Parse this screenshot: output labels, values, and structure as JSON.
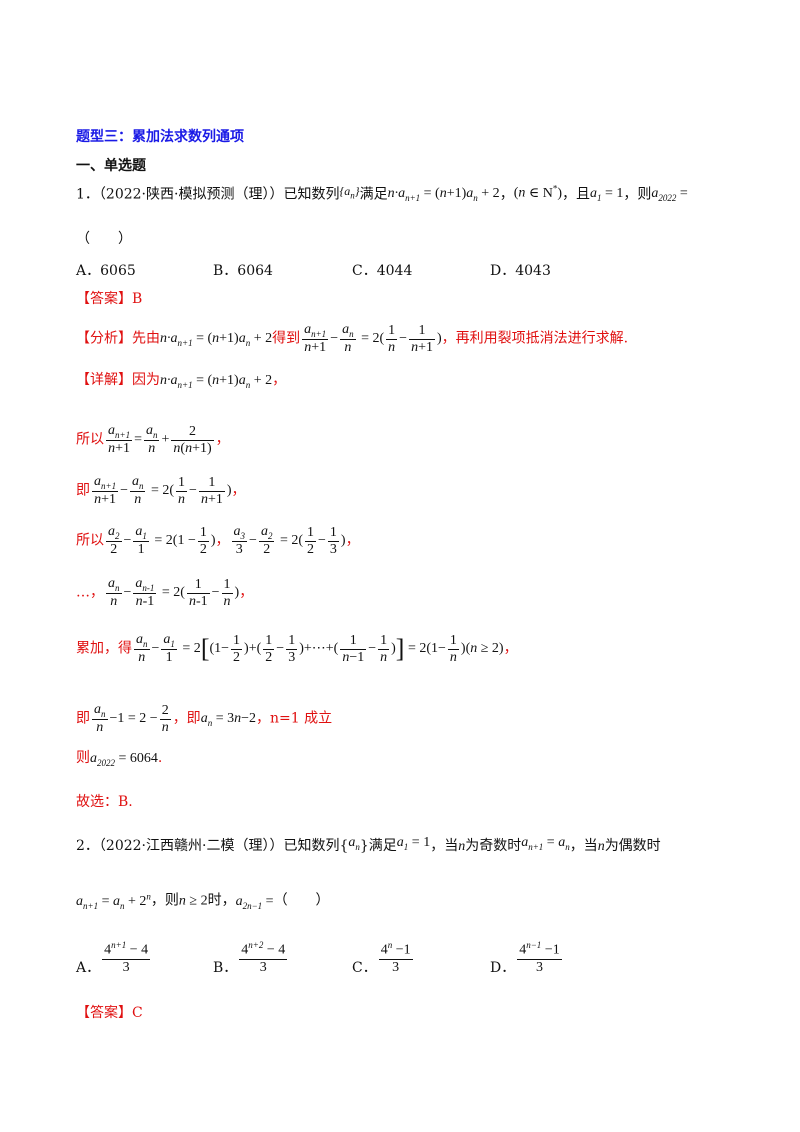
{
  "section_title": "题型三：累加法求数列通项",
  "subsection": "一、单选题",
  "q1": {
    "number": "1．",
    "source": "（2022·陕西·模拟预测（理））",
    "stem_a": "已知数列",
    "stem_b": "满足",
    "stem_c": "，且",
    "stem_d": "，则",
    "paren": "（　　）",
    "options": [
      {
        "label": "A．",
        "value": "6065"
      },
      {
        "label": "B．",
        "value": "6064"
      },
      {
        "label": "C．",
        "value": "4044"
      },
      {
        "label": "D．",
        "value": "4043"
      }
    ],
    "answer_tag": "【答案】",
    "answer": "B",
    "analysis_tag": "【分析】",
    "analysis_a": "先由",
    "analysis_b": "得到",
    "analysis_c": "，再利用裂项抵消法进行求解.",
    "detail_tag": "【详解】",
    "detail_a": "因为",
    "so": "所以",
    "ji": "即",
    "leijia": "累加，得",
    "ji2": "，即",
    "n1": "n=1 成立",
    "ze": "则",
    "choose": "故选：B."
  },
  "q2": {
    "number": "2．",
    "source": "（2022·江西赣州·二模（理））",
    "stem_a": "已知数列{",
    "stem_b": "}满足",
    "stem_c": "，当",
    "stem_d": "为奇数时",
    "stem_e": "，当",
    "stem_f": "为偶数时",
    "stem_g": "，则",
    "stem_h": "时，",
    "paren": "（　　）",
    "options": [
      {
        "label": "A．"
      },
      {
        "label": "B．"
      },
      {
        "label": "C．"
      },
      {
        "label": "D．"
      }
    ],
    "answer_tag": "【答案】",
    "answer": "C"
  }
}
